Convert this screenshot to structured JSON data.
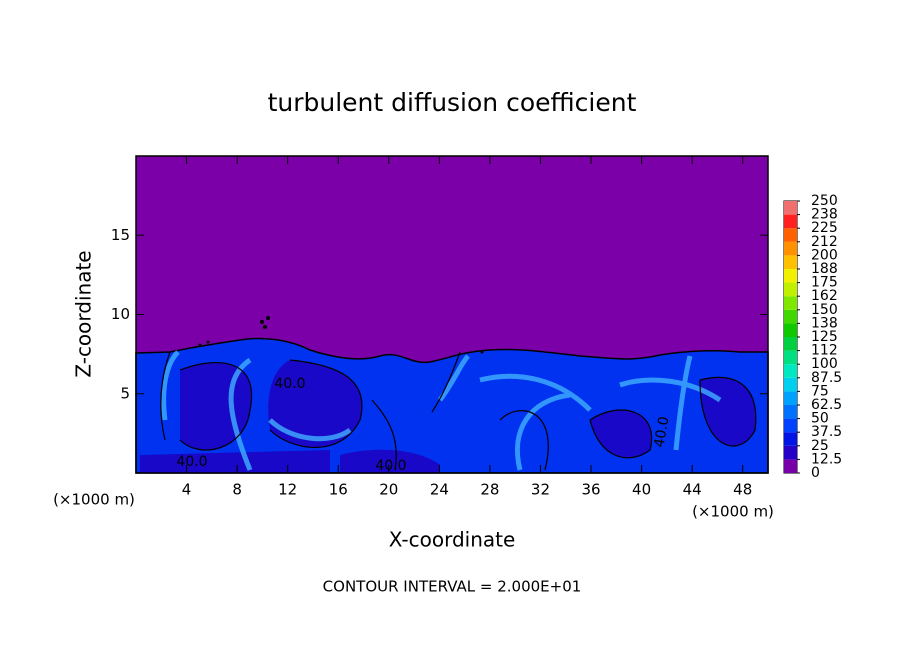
{
  "chart_data": {
    "type": "contour",
    "title": "turbulent diffusion coefficient",
    "xlabel": "X-coordinate",
    "ylabel": "Z-coordinate",
    "x_unit": "(×1000 m)",
    "footer": "CONTOUR INTERVAL = 2.000E+01",
    "xlim": [
      0,
      50
    ],
    "xticks": [
      4,
      8,
      12,
      16,
      20,
      24,
      28,
      32,
      36,
      40,
      44,
      48
    ],
    "ylim": [
      0,
      20
    ],
    "yticks": [
      5,
      10,
      15
    ],
    "contour_labels": [
      "40.0",
      "40.0",
      "40.0",
      "40.0"
    ],
    "colorbar_ticks": [
      0,
      12.5,
      25,
      37.5,
      50,
      62.5,
      75,
      87.5,
      100,
      {
        "value": 112.5,
        "label": "112"
      },
      125,
      {
        "value": 137.5,
        "label": "138"
      },
      150,
      {
        "value": 162.5,
        "label": "162"
      },
      175,
      {
        "value": 187.5,
        "label": "188"
      },
      200,
      {
        "value": 212.5,
        "label": "212"
      },
      225,
      {
        "value": 237.5,
        "label": "238"
      },
      250
    ],
    "colorbar_colors": [
      "#7800a8",
      "#2400c8",
      "#0014e6",
      "#0040ff",
      "#0070ff",
      "#00a0ff",
      "#00d0f0",
      "#00e8c0",
      "#00e080",
      "#00d040",
      "#10c800",
      "#40d800",
      "#80e800",
      "#c0f000",
      "#f0f000",
      "#ffc000",
      "#ff9000",
      "#ff6000",
      "#ff2020",
      "#f07070"
    ],
    "grid": false
  }
}
